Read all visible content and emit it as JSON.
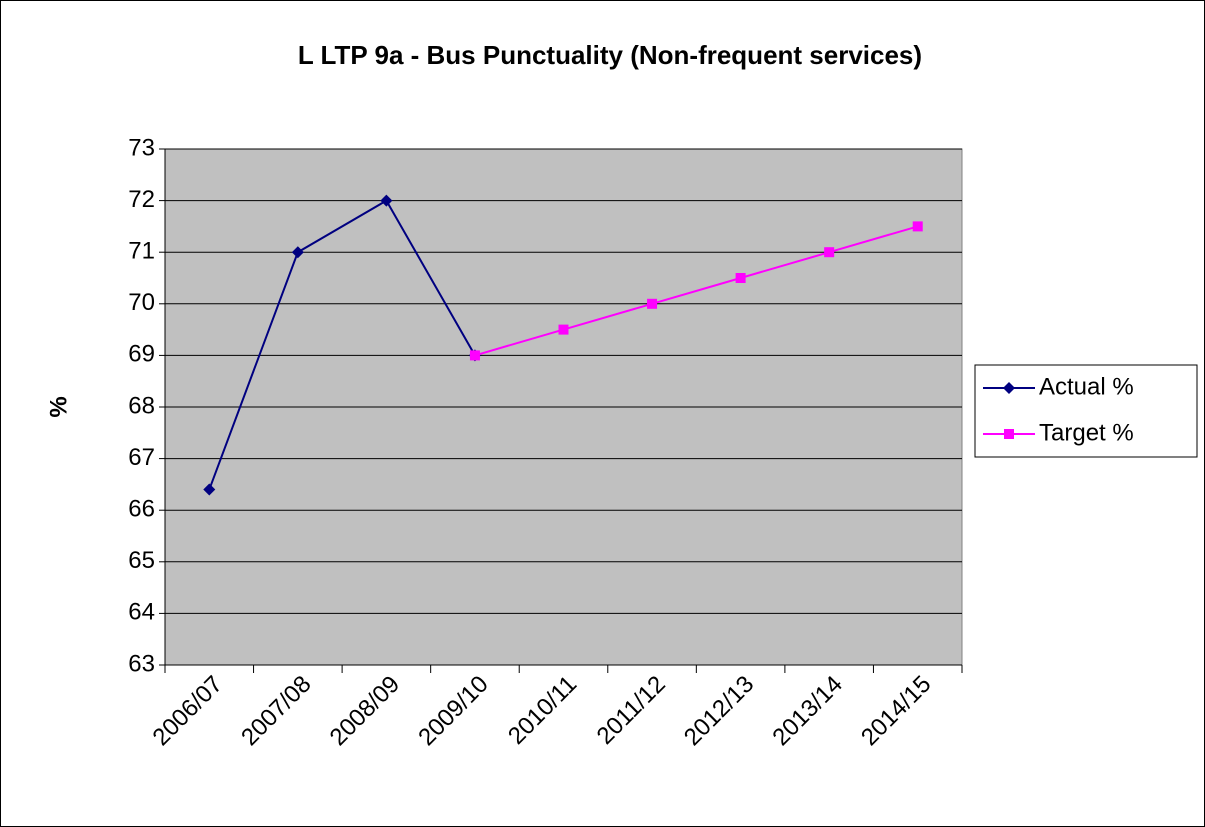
{
  "chart_data": {
    "type": "line",
    "title": "L LTP 9a - Bus Punctuality (Non-frequent services)",
    "y_label": "%",
    "categories": [
      "2006/07",
      "2007/08",
      "2008/09",
      "2009/10",
      "2010/11",
      "2011/12",
      "2012/13",
      "2013/14",
      "2014/15"
    ],
    "series": [
      {
        "name": "Actual %",
        "color": "#000080",
        "marker": "diamond",
        "values": [
          66.4,
          71,
          72,
          69,
          null,
          null,
          null,
          null,
          null
        ]
      },
      {
        "name": "Target %",
        "color": "#ff00ff",
        "marker": "square",
        "values": [
          null,
          null,
          null,
          69,
          69.5,
          70,
          70.5,
          71,
          71.5
        ]
      }
    ],
    "ylim": [
      63,
      73
    ],
    "yticks": [
      63,
      64,
      65,
      66,
      67,
      68,
      69,
      70,
      71,
      72,
      73
    ],
    "grid": true,
    "legend": "right",
    "plot_background": "#c0c0c0"
  }
}
